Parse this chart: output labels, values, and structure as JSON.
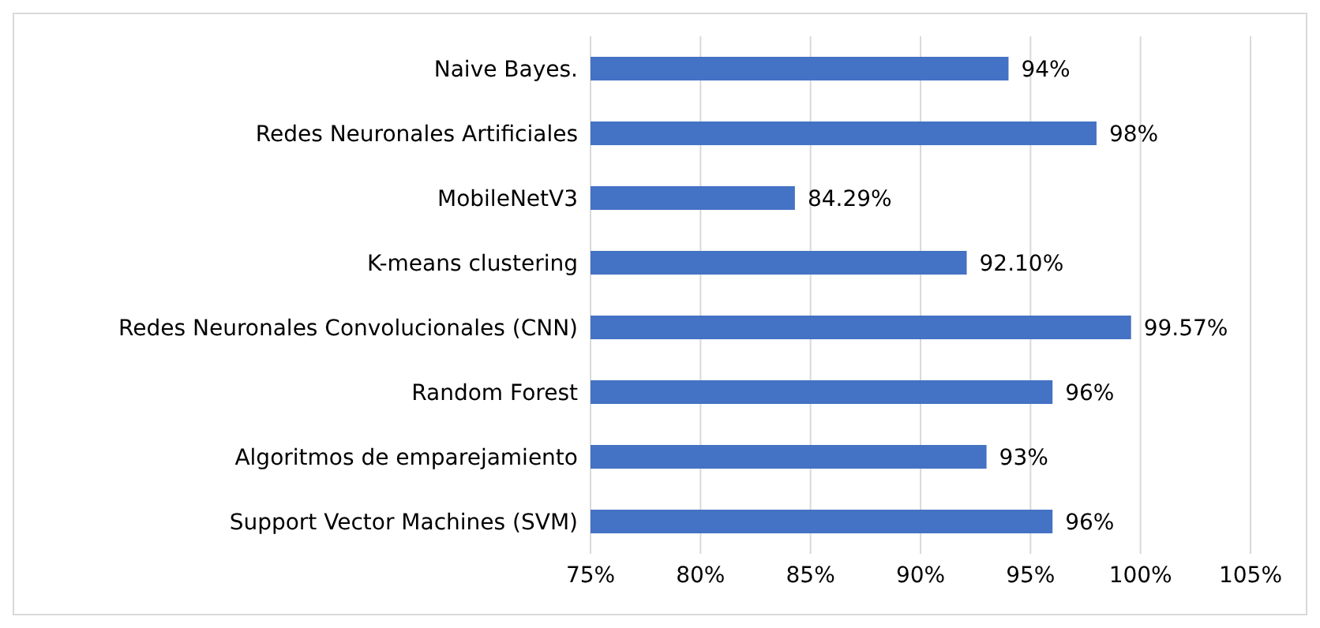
{
  "chart_data": {
    "type": "bar",
    "orientation": "horizontal",
    "categories": [
      "Naive Bayes.",
      "Redes Neuronales Artificiales",
      "MobileNetV3",
      "K-means clustering",
      "Redes Neuronales Convolucionales (CNN)",
      "Random Forest",
      "Algoritmos de emparejamiento",
      "Support Vector Machines (SVM)"
    ],
    "values": [
      94,
      98,
      84.29,
      92.1,
      99.57,
      96,
      93,
      96
    ],
    "value_labels": [
      "94%",
      "98%",
      "84.29%",
      "92.10%",
      "99.57%",
      "96%",
      "93%",
      "96%"
    ],
    "color": "#4472c4",
    "xlim": [
      75,
      105
    ],
    "xticks": [
      {
        "value": 75,
        "label": "75%"
      },
      {
        "value": 80,
        "label": "80%"
      },
      {
        "value": 85,
        "label": "85%"
      },
      {
        "value": 90,
        "label": "90%"
      },
      {
        "value": 95,
        "label": "95%"
      },
      {
        "value": 100,
        "label": "100%"
      },
      {
        "value": 105,
        "label": "105%"
      }
    ],
    "grid": "x"
  }
}
